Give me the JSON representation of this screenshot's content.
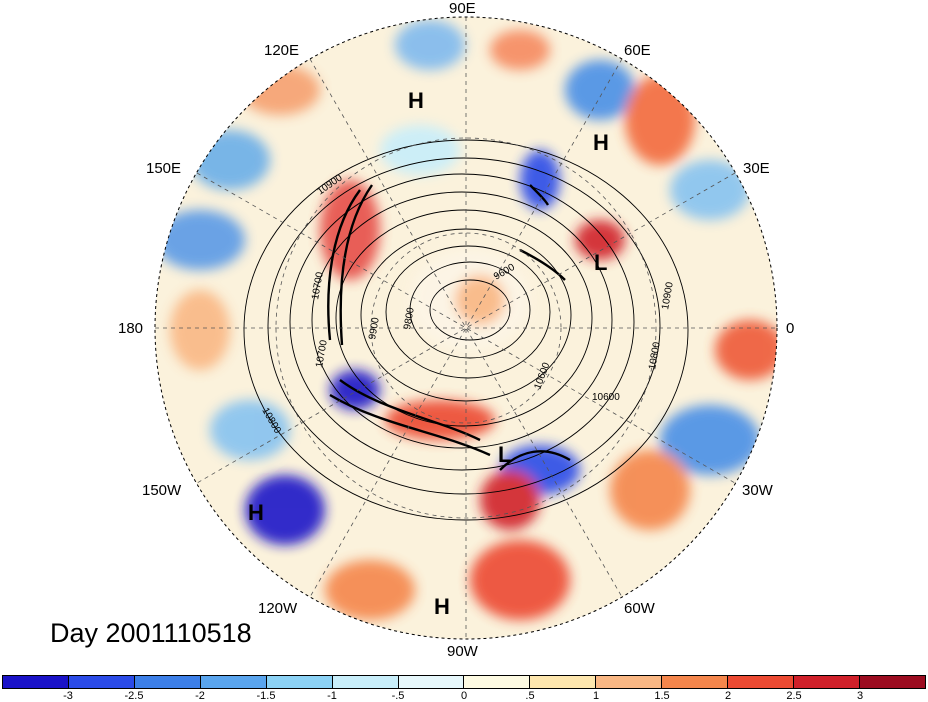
{
  "longitude_labels": [
    {
      "id": "90e",
      "text": "90E"
    },
    {
      "id": "60e",
      "text": "60E"
    },
    {
      "id": "120e",
      "text": "120E"
    },
    {
      "id": "150e",
      "text": "150E"
    },
    {
      "id": "30e",
      "text": "30E"
    },
    {
      "id": "180",
      "text": "180"
    },
    {
      "id": "0",
      "text": "0"
    },
    {
      "id": "150w",
      "text": "150W"
    },
    {
      "id": "30w",
      "text": "30W"
    },
    {
      "id": "120w",
      "text": "120W"
    },
    {
      "id": "60w",
      "text": "60W"
    },
    {
      "id": "90w",
      "text": "90W"
    }
  ],
  "pressure_centers": [
    {
      "id": "h1",
      "text": "H"
    },
    {
      "id": "h2",
      "text": "H"
    },
    {
      "id": "h3",
      "text": "H"
    },
    {
      "id": "h4",
      "text": "H"
    },
    {
      "id": "l1",
      "text": "L"
    },
    {
      "id": "l2",
      "text": "L"
    }
  ],
  "contour_labels": [
    "10900",
    "10700",
    "9900",
    "9800",
    "9600",
    "10900",
    "10800",
    "10600",
    "10600",
    "10800",
    "10700"
  ],
  "title": "Day 2001110518",
  "colorbar": {
    "colors": [
      "#1a12c8",
      "#2b4be8",
      "#3c7fe8",
      "#5aa5ee",
      "#8cd2f5",
      "#c8eefa",
      "#e6f7fb",
      "#fdfae2",
      "#fde6ae",
      "#f9b784",
      "#f4864c",
      "#ec4a32",
      "#d0202a",
      "#9c0c20"
    ],
    "ticks": [
      "-3",
      "-2.5",
      "-2",
      "-1.5",
      "-1",
      "-.5",
      "0",
      ".5",
      "1",
      "1.5",
      "2",
      "2.5",
      "3"
    ]
  }
}
